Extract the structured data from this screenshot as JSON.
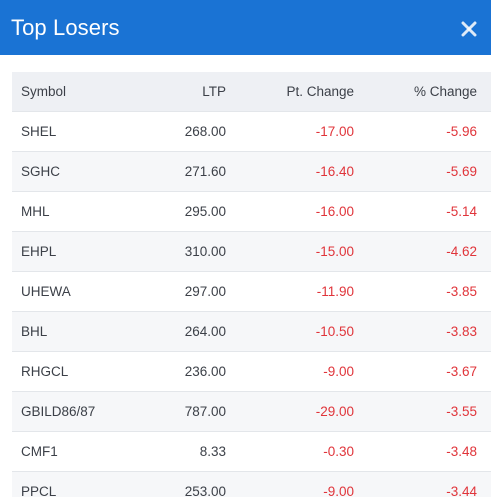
{
  "modal": {
    "title": "Top Losers",
    "close_icon": "close-icon",
    "header_color": "#1a73d4",
    "negative_color": "#e0343a"
  },
  "table": {
    "headers": {
      "symbol": "Symbol",
      "ltp": "LTP",
      "pt_change": "Pt. Change",
      "pct_change": "% Change"
    },
    "rows": [
      {
        "symbol": "SHEL",
        "ltp": "268.00",
        "pt_change": "-17.00",
        "pct_change": "-5.96"
      },
      {
        "symbol": "SGHC",
        "ltp": "271.60",
        "pt_change": "-16.40",
        "pct_change": "-5.69"
      },
      {
        "symbol": "MHL",
        "ltp": "295.00",
        "pt_change": "-16.00",
        "pct_change": "-5.14"
      },
      {
        "symbol": "EHPL",
        "ltp": "310.00",
        "pt_change": "-15.00",
        "pct_change": "-4.62"
      },
      {
        "symbol": "UHEWA",
        "ltp": "297.00",
        "pt_change": "-11.90",
        "pct_change": "-3.85"
      },
      {
        "symbol": "BHL",
        "ltp": "264.00",
        "pt_change": "-10.50",
        "pct_change": "-3.83"
      },
      {
        "symbol": "RHGCL",
        "ltp": "236.00",
        "pt_change": "-9.00",
        "pct_change": "-3.67"
      },
      {
        "symbol": "GBILD86/87",
        "ltp": "787.00",
        "pt_change": "-29.00",
        "pct_change": "-3.55"
      },
      {
        "symbol": "CMF1",
        "ltp": "8.33",
        "pt_change": "-0.30",
        "pct_change": "-3.48"
      },
      {
        "symbol": "PPCL",
        "ltp": "253.00",
        "pt_change": "-9.00",
        "pct_change": "-3.44"
      }
    ]
  }
}
